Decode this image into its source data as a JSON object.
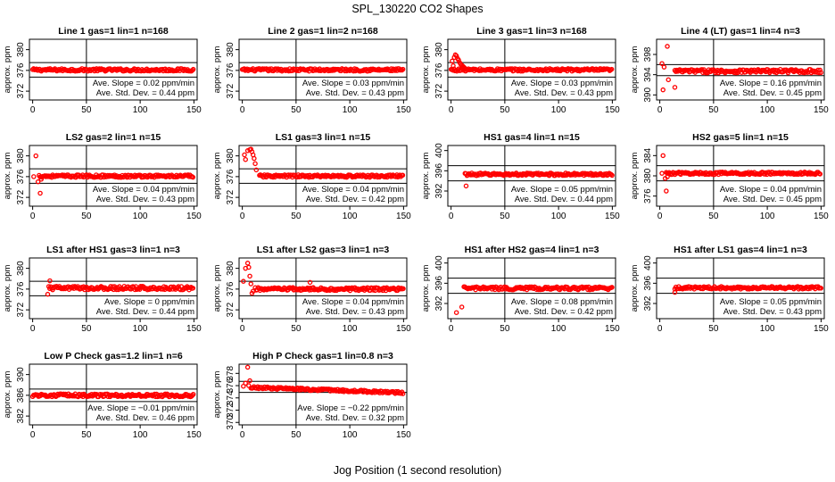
{
  "figure": {
    "title": "SPL_130220  CO2 Shapes",
    "xlabel": "Jog Position (1 second resolution)"
  },
  "chart_data": [
    {
      "type": "scatter",
      "title": "Line 1 gas=1 lin=1 n=168",
      "ylabel": "approx. ppm",
      "xlim": [
        -3,
        153
      ],
      "xticks": [
        0,
        50,
        100,
        150
      ],
      "ylim": [
        370.3,
        382
      ],
      "yticks": [
        372,
        376,
        380
      ],
      "hlines": [
        377.5,
        374.7
      ],
      "vline": 50,
      "slope_text": "Ave. Slope = 0.02  ppm/min",
      "sd_text": "Ave. Std. Dev. = 0.44  ppm",
      "series": [
        {
          "x_start": 0,
          "x_end": 150,
          "base": 376.1,
          "noise": 0.25
        }
      ],
      "color": "#ff0000"
    },
    {
      "type": "scatter",
      "title": "Line 2 gas=1 lin=2 n=168",
      "ylabel": "approx. ppm",
      "xlim": [
        -3,
        153
      ],
      "xticks": [
        0,
        50,
        100,
        150
      ],
      "ylim": [
        370.3,
        382
      ],
      "yticks": [
        372,
        376,
        380
      ],
      "hlines": [
        377.5,
        374.7
      ],
      "vline": 50,
      "slope_text": "Ave. Slope = 0.03  ppm/min",
      "sd_text": "Ave. Std. Dev. = 0.43  ppm",
      "series": [
        {
          "x_start": 0,
          "x_end": 150,
          "base": 376.1,
          "noise": 0.25
        }
      ],
      "color": "#ff0000"
    },
    {
      "type": "scatter",
      "title": "Line 3 gas=1 lin=3 n=168",
      "ylabel": "approx. ppm",
      "xlim": [
        -3,
        153
      ],
      "xticks": [
        0,
        50,
        100,
        150
      ],
      "ylim": [
        370.3,
        382
      ],
      "yticks": [
        372,
        376,
        380
      ],
      "hlines": [
        377.5,
        374.7
      ],
      "vline": 50,
      "slope_text": "Ave. Slope = 0.03  ppm/min",
      "sd_text": "Ave. Std. Dev. = 0.43  ppm",
      "series": [
        {
          "x_start": 0,
          "x_end": 150,
          "base": 376.1,
          "noise": 0.25
        }
      ],
      "points": [
        [
          1,
          377.8
        ],
        [
          2,
          376.9
        ],
        [
          3,
          378.5
        ],
        [
          4,
          379.0
        ],
        [
          5,
          378.8
        ],
        [
          6,
          378.3
        ],
        [
          7,
          378.0
        ],
        [
          8,
          377.5
        ],
        [
          9,
          377.2
        ],
        [
          10,
          377.0
        ],
        [
          11,
          376.8
        ],
        [
          12,
          376.6
        ],
        [
          13,
          376.4
        ]
      ],
      "color": "#ff0000"
    },
    {
      "type": "scatter",
      "title": "Line 4 (LT) gas=1 lin=4 n=3",
      "ylabel": "approx. ppm",
      "xlim": [
        -3,
        153
      ],
      "xticks": [
        0,
        50,
        100,
        150
      ],
      "ylim": [
        389,
        401
      ],
      "yticks": [
        390,
        394,
        398
      ],
      "hlines": [
        396.0,
        393.8
      ],
      "vline": 50,
      "slope_text": "Ave. Slope = 0.16  ppm/min",
      "sd_text": "Ave. Std. Dev. = 0.45  ppm",
      "series": [
        {
          "x_start": 14,
          "x_end": 150,
          "base": 394.7,
          "noise": 0.35
        }
      ],
      "points": [
        [
          2,
          396.2
        ],
        [
          3,
          391.0
        ],
        [
          4,
          395.5
        ],
        [
          7,
          399.6
        ],
        [
          8,
          393.0
        ],
        [
          14,
          391.5
        ]
      ],
      "color": "#ff0000"
    },
    {
      "type": "scatter",
      "title": "LS2 gas=2 lin=1 n=15",
      "ylabel": "approx. ppm",
      "xlim": [
        -3,
        153
      ],
      "xticks": [
        0,
        50,
        100,
        150
      ],
      "ylim": [
        370.3,
        382
      ],
      "yticks": [
        372,
        376,
        380
      ],
      "hlines": [
        377.5,
        374.7
      ],
      "vline": 50,
      "slope_text": "Ave. Slope = 0.04  ppm/min",
      "sd_text": "Ave. Std. Dev. = 0.43  ppm",
      "series": [
        {
          "x_start": 6,
          "x_end": 150,
          "base": 376.1,
          "noise": 0.25
        }
      ],
      "points": [
        [
          1,
          376.0
        ],
        [
          3,
          380.0
        ],
        [
          5,
          375.0
        ],
        [
          7,
          372.8
        ],
        [
          8,
          375.5
        ]
      ],
      "color": "#ff0000"
    },
    {
      "type": "scatter",
      "title": "LS1 gas=3 lin=1 n=15",
      "ylabel": "approx. ppm",
      "xlim": [
        -3,
        153
      ],
      "xticks": [
        0,
        50,
        100,
        150
      ],
      "ylim": [
        370.3,
        382
      ],
      "yticks": [
        372,
        376,
        380
      ],
      "hlines": [
        377.5,
        374.7
      ],
      "vline": 50,
      "slope_text": "Ave. Slope = 0.04  ppm/min",
      "sd_text": "Ave. Std. Dev. = 0.42  ppm",
      "series": [
        {
          "x_start": 16,
          "x_end": 150,
          "base": 376.1,
          "noise": 0.25
        }
      ],
      "points": [
        [
          2,
          380.2
        ],
        [
          3,
          379.3
        ],
        [
          5,
          381.0
        ],
        [
          7,
          381.2
        ],
        [
          8,
          381.3
        ],
        [
          9,
          380.8
        ],
        [
          10,
          380.2
        ],
        [
          11,
          379.5
        ],
        [
          12,
          378.5
        ],
        [
          13,
          377.3
        ]
      ],
      "color": "#ff0000"
    },
    {
      "type": "scatter",
      "title": "HS1 gas=4 lin=1 n=15",
      "ylabel": "approx. ppm",
      "xlim": [
        -3,
        153
      ],
      "xticks": [
        0,
        50,
        100,
        150
      ],
      "ylim": [
        389,
        401
      ],
      "yticks": [
        392,
        396,
        400
      ],
      "hlines": [
        397.0,
        394.0
      ],
      "vline": 50,
      "slope_text": "Ave. Slope = 0.05  ppm/min",
      "sd_text": "Ave. Std. Dev. = 0.44  ppm",
      "series": [
        {
          "x_start": 13,
          "x_end": 150,
          "base": 395.3,
          "noise": 0.25
        }
      ],
      "points": [
        [
          14,
          393.0
        ]
      ],
      "color": "#ff0000"
    },
    {
      "type": "scatter",
      "title": "HS2 gas=5 lin=1 n=15",
      "ylabel": "approx. ppm",
      "xlim": [
        -3,
        153
      ],
      "xticks": [
        0,
        50,
        100,
        150
      ],
      "ylim": [
        374,
        386
      ],
      "yticks": [
        376,
        380,
        384
      ],
      "hlines": [
        382.0,
        379.0
      ],
      "vline": 50,
      "slope_text": "Ave. Slope = 0.04  ppm/min",
      "sd_text": "Ave. Std. Dev. = 0.45  ppm",
      "series": [
        {
          "x_start": 6,
          "x_end": 150,
          "base": 380.5,
          "noise": 0.25
        }
      ],
      "points": [
        [
          2,
          380.5
        ],
        [
          3,
          384.0
        ],
        [
          5,
          379.5
        ],
        [
          6,
          377.0
        ],
        [
          7,
          379.8
        ]
      ],
      "color": "#ff0000"
    },
    {
      "type": "scatter",
      "title": "LS1 after HS1 gas=3 lin=1 n=3",
      "ylabel": "approx. ppm",
      "xlim": [
        -3,
        153
      ],
      "xticks": [
        0,
        50,
        100,
        150
      ],
      "ylim": [
        370.3,
        382
      ],
      "yticks": [
        372,
        376,
        380
      ],
      "hlines": [
        377.5,
        374.7
      ],
      "vline": 50,
      "slope_text": "Ave. Slope = 0  ppm/min",
      "sd_text": "Ave. Std. Dev. = 0.44  ppm",
      "series": [
        {
          "x_start": 15,
          "x_end": 150,
          "base": 376.2,
          "noise": 0.35
        }
      ],
      "points": [
        [
          14,
          375.0
        ],
        [
          16,
          377.6
        ]
      ],
      "color": "#ff0000"
    },
    {
      "type": "scatter",
      "title": "LS1 after LS2 gas=3 lin=1 n=3",
      "ylabel": "approx. ppm",
      "xlim": [
        -3,
        153
      ],
      "xticks": [
        0,
        50,
        100,
        150
      ],
      "ylim": [
        370.3,
        382
      ],
      "yticks": [
        372,
        376,
        380
      ],
      "hlines": [
        377.5,
        374.7
      ],
      "vline": 50,
      "slope_text": "Ave. Slope = 0.04  ppm/min",
      "sd_text": "Ave. Std. Dev. = 0.43  ppm",
      "series": [
        {
          "x_start": 12,
          "x_end": 150,
          "base": 376.0,
          "noise": 0.3
        }
      ],
      "points": [
        [
          1,
          377.5
        ],
        [
          3,
          380.0
        ],
        [
          5,
          381.0
        ],
        [
          6,
          380.2
        ],
        [
          7,
          378.5
        ],
        [
          8,
          377.0
        ],
        [
          9,
          375.2
        ],
        [
          10,
          375.6
        ],
        [
          63,
          377.3
        ]
      ],
      "color": "#ff0000"
    },
    {
      "type": "scatter",
      "title": "HS1 after HS2 gas=4 lin=1 n=3",
      "ylabel": "approx. ppm",
      "xlim": [
        -3,
        153
      ],
      "xticks": [
        0,
        50,
        100,
        150
      ],
      "ylim": [
        389,
        401
      ],
      "yticks": [
        392,
        396,
        400
      ],
      "hlines": [
        397.0,
        394.0
      ],
      "vline": 50,
      "slope_text": "Ave. Slope = 0.08  ppm/min",
      "sd_text": "Ave. Std. Dev. = 0.42  ppm",
      "series": [
        {
          "x_start": 12,
          "x_end": 150,
          "base": 395.0,
          "noise": 0.3
        }
      ],
      "points": [
        [
          5,
          390.2
        ],
        [
          10,
          391.3
        ]
      ],
      "color": "#ff0000"
    },
    {
      "type": "scatter",
      "title": "HS1 after LS1 gas=4 lin=1 n=3",
      "ylabel": "approx. ppm",
      "xlim": [
        -3,
        153
      ],
      "xticks": [
        0,
        50,
        100,
        150
      ],
      "ylim": [
        389,
        401
      ],
      "yticks": [
        392,
        396,
        400
      ],
      "hlines": [
        397.0,
        394.0
      ],
      "vline": 50,
      "slope_text": "Ave. Slope = 0.05  ppm/min",
      "sd_text": "Ave. Std. Dev. = 0.43  ppm",
      "series": [
        {
          "x_start": 14,
          "x_end": 150,
          "base": 395.1,
          "noise": 0.25
        }
      ],
      "points": [
        [
          14,
          394.2
        ]
      ],
      "color": "#ff0000"
    },
    {
      "type": "scatter",
      "title": "Low P Check gas=1.2 lin=1 n=6",
      "ylabel": "approx. ppm",
      "xlim": [
        -3,
        153
      ],
      "xticks": [
        0,
        50,
        100,
        150
      ],
      "ylim": [
        380.3,
        392
      ],
      "yticks": [
        382,
        386,
        390
      ],
      "hlines": [
        387.2,
        384.8
      ],
      "vline": 50,
      "slope_text": "Ave. Slope = −0.01  ppm/min",
      "sd_text": "Ave. Std. Dev. = 0.46  ppm",
      "series": [
        {
          "x_start": 0,
          "x_end": 150,
          "base": 386.0,
          "noise": 0.28
        }
      ],
      "color": "#ff0000"
    },
    {
      "type": "scatter",
      "title": "High P Check gas=1 lin=0.8 n=3",
      "ylabel": "approx. ppm",
      "xlim": [
        -3,
        153
      ],
      "xticks": [
        0,
        50,
        100,
        150
      ],
      "ylim": [
        369.6,
        379.5
      ],
      "yticks": [
        370,
        372,
        374,
        376,
        378
      ],
      "hlines": [
        376.7,
        374.9
      ],
      "vline": 50,
      "slope_text": "Ave. Slope = −0.22  ppm/min",
      "sd_text": "Ave. Std. Dev. = 0.32  ppm",
      "series": [
        {
          "x_start": 9,
          "x_end": 150,
          "base": 375.7,
          "noise": 0.18,
          "slope": -0.006
        }
      ],
      "points": [
        [
          1,
          375.9
        ],
        [
          3,
          376.4
        ],
        [
          5,
          379.0
        ],
        [
          6,
          376.0
        ],
        [
          7,
          376.8
        ],
        [
          8,
          375.6
        ]
      ],
      "color": "#ff0000"
    }
  ]
}
